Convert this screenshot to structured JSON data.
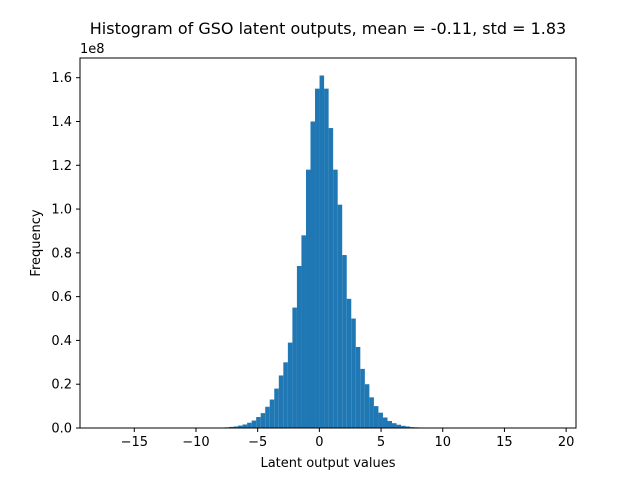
{
  "chart_data": {
    "type": "bar",
    "title": "Histogram of GSO latent outputs, mean = -0.11, std = 1.83",
    "xlabel": "Latent output values",
    "ylabel": "Frequency",
    "y_offset_label": "1e8",
    "xlim": [
      -19.4,
      20.8
    ],
    "ylim": [
      0,
      1.69
    ],
    "y_units": "x1e8",
    "x_ticks": [
      -15,
      -10,
      -5,
      0,
      5,
      10,
      15,
      20
    ],
    "y_ticks": [
      0.0,
      0.2,
      0.4,
      0.6,
      0.8,
      1.0,
      1.2,
      1.4,
      1.6
    ],
    "x_tick_labels": [
      "−15",
      "−10",
      "−5",
      "0",
      "5",
      "10",
      "15",
      "20"
    ],
    "y_tick_labels": [
      "0.0",
      "0.2",
      "0.4",
      "0.6",
      "0.8",
      "1.0",
      "1.2",
      "1.4",
      "1.6"
    ],
    "bin_range": [
      -17.6,
      19.1
    ],
    "bin_width": 0.367,
    "values": [
      0,
      0,
      0,
      0,
      0,
      0,
      0,
      0,
      0,
      0,
      0,
      0,
      0,
      0,
      0,
      0,
      0,
      0,
      0,
      0,
      0,
      0,
      0,
      0,
      0,
      0.001,
      0.002,
      0.003,
      0.005,
      0.007,
      0.011,
      0.016,
      0.024,
      0.034,
      0.05,
      0.068,
      0.097,
      0.13,
      0.18,
      0.24,
      0.3,
      0.39,
      0.55,
      0.74,
      0.88,
      1.18,
      1.4,
      1.55,
      1.61,
      1.55,
      1.37,
      1.18,
      1.02,
      0.79,
      0.59,
      0.5,
      0.37,
      0.27,
      0.2,
      0.14,
      0.1,
      0.07,
      0.048,
      0.032,
      0.022,
      0.015,
      0.01,
      0.007,
      0.004,
      0.003,
      0.002,
      0.001,
      0,
      0,
      0,
      0,
      0,
      0,
      0,
      0,
      0,
      0,
      0,
      0,
      0,
      0,
      0,
      0,
      0,
      0,
      0,
      0,
      0,
      0,
      0,
      0,
      0,
      0,
      0,
      0
    ],
    "bar_color": "#1f77b4",
    "grid": false,
    "legend": "none"
  }
}
